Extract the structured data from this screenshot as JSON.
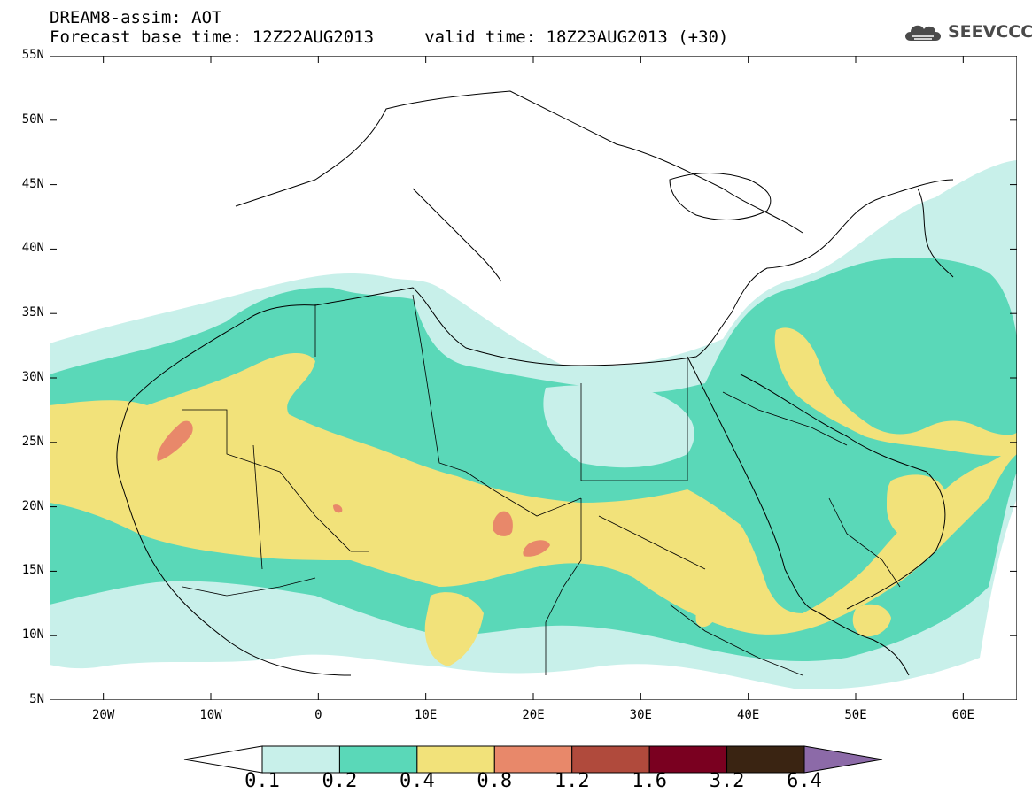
{
  "header": {
    "title_line1": "DREAM8-assim: AOT",
    "title_line2": "Forecast base time: 12Z22AUG2013     valid time: 18Z23AUG2013 (+30)",
    "logo_text": "SEEVCCC",
    "logo_icon": "cloud-icon"
  },
  "map": {
    "lat_labels": [
      "55N",
      "50N",
      "45N",
      "40N",
      "35N",
      "30N",
      "25N",
      "20N",
      "15N",
      "10N",
      "5N"
    ],
    "lon_labels": [
      "20W",
      "10W",
      "0",
      "10E",
      "20E",
      "30E",
      "40E",
      "50E",
      "60E"
    ],
    "region": "North Africa, Middle East and Europe",
    "lon_range": [
      -25,
      65
    ],
    "lat_range": [
      5,
      55
    ]
  },
  "legend": {
    "labels": [
      "0.1",
      "0.2",
      "0.4",
      "0.8",
      "1.2",
      "1.6",
      "3.2",
      "6.4"
    ],
    "colors": [
      "#ffffff",
      "#c8f0ea",
      "#5ad8b8",
      "#f2e27a",
      "#e8886a",
      "#b04a3c",
      "#7a0020",
      "#3a2412",
      "#8c6aa8"
    ]
  }
}
